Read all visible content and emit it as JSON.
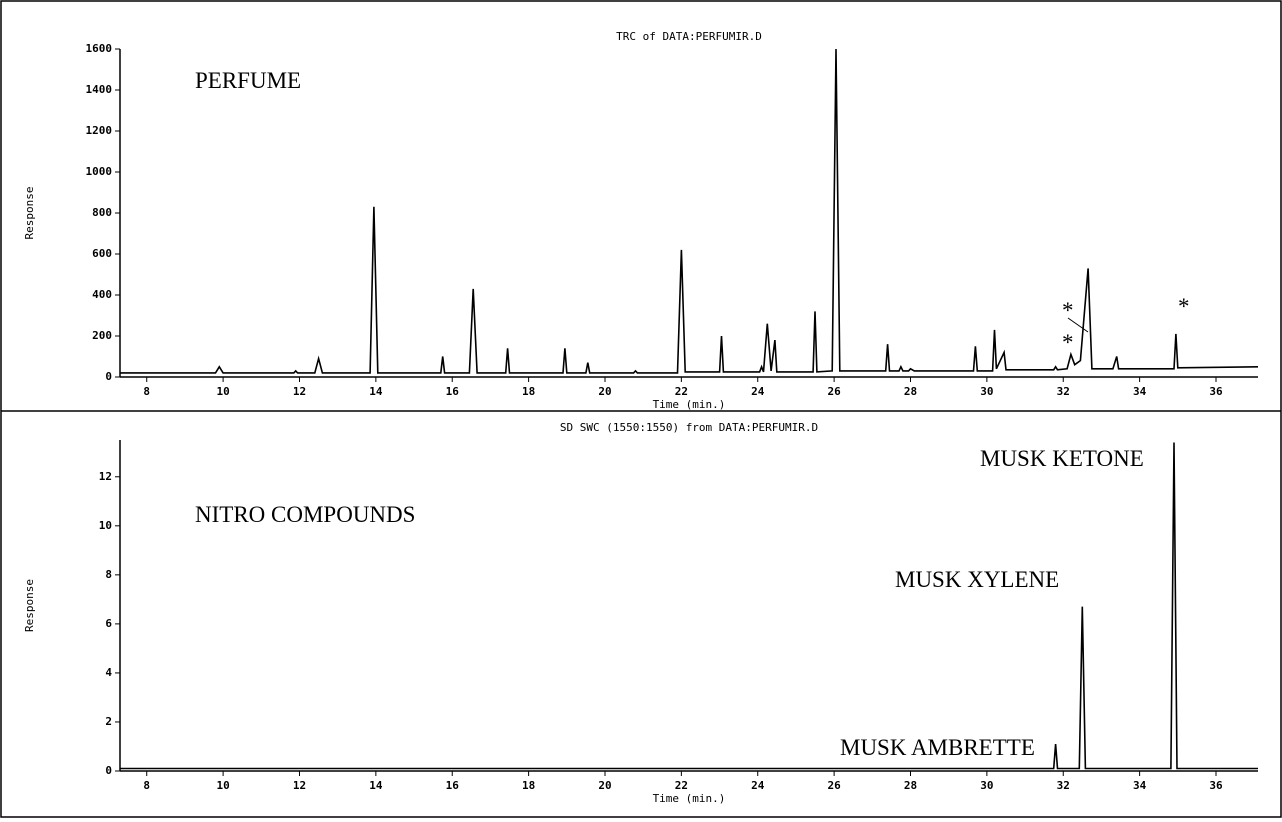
{
  "chart_data": [
    {
      "type": "line",
      "title": "TRC of DATA:PERFUMIR.D",
      "xlabel": "Time (min.)",
      "ylabel": "Response",
      "color": "#000000",
      "x": [
        7.3,
        9.8,
        9.9,
        10.0,
        11.85,
        11.9,
        11.95,
        12.4,
        12.5,
        12.6,
        13.85,
        13.95,
        14.05,
        15.7,
        15.75,
        15.8,
        16.45,
        16.55,
        16.65,
        17.4,
        17.45,
        17.5,
        18.9,
        18.95,
        19.0,
        19.5,
        19.55,
        19.6,
        20.75,
        20.8,
        20.85,
        21.9,
        22.0,
        22.1,
        23.0,
        23.05,
        23.1,
        24.05,
        24.1,
        24.15,
        24.25,
        24.35,
        24.45,
        24.5,
        25.45,
        25.5,
        25.55,
        25.95,
        26.05,
        26.15,
        27.35,
        27.4,
        27.45,
        27.7,
        27.75,
        27.8,
        27.95,
        28.0,
        28.1,
        29.65,
        29.7,
        29.75,
        30.15,
        30.2,
        30.25,
        30.45,
        30.5,
        31.75,
        31.8,
        31.85,
        32.1,
        32.2,
        32.3,
        32.45,
        32.65,
        32.75,
        33.2,
        33.25,
        33.3,
        33.4,
        33.45,
        34.9,
        34.95,
        35.0,
        37.1
      ],
      "values": [
        20,
        20,
        50,
        20,
        20,
        30,
        20,
        20,
        90,
        20,
        20,
        830,
        20,
        20,
        100,
        20,
        20,
        430,
        20,
        20,
        140,
        20,
        20,
        140,
        20,
        20,
        70,
        20,
        20,
        30,
        20,
        20,
        620,
        25,
        25,
        200,
        25,
        25,
        50,
        25,
        260,
        30,
        180,
        25,
        25,
        320,
        25,
        30,
        1600,
        30,
        30,
        160,
        30,
        30,
        50,
        30,
        30,
        40,
        30,
        30,
        150,
        30,
        30,
        230,
        40,
        120,
        35,
        35,
        50,
        35,
        40,
        110,
        60,
        80,
        530,
        40,
        40,
        40,
        40,
        100,
        40,
        40,
        210,
        45,
        50
      ],
      "xlim": [
        7.3,
        37.1
      ],
      "ylim": [
        0,
        1600
      ],
      "xticks": [
        8,
        10,
        12,
        14,
        16,
        18,
        20,
        22,
        24,
        26,
        28,
        30,
        32,
        34,
        36
      ],
      "yticks": [
        0,
        200,
        400,
        600,
        800,
        1000,
        1200,
        1400,
        1600
      ],
      "annotations": [
        "PERFUME",
        "*",
        "*",
        "*"
      ]
    },
    {
      "type": "line",
      "title": "SD SWC (1550:1550) from DATA:PERFUMIR.D",
      "xlabel": "Time (min.)",
      "ylabel": "Response",
      "color": "#000000",
      "x": [
        7.3,
        31.75,
        31.8,
        31.85,
        32.42,
        32.5,
        32.58,
        34.82,
        34.9,
        34.98,
        37.1
      ],
      "values": [
        0.1,
        0.1,
        1.1,
        0.1,
        0.1,
        6.7,
        0.1,
        0.1,
        13.4,
        0.1,
        0.1
      ],
      "xlim": [
        7.3,
        37.1
      ],
      "ylim": [
        0,
        13.5
      ],
      "xticks": [
        8,
        10,
        12,
        14,
        16,
        18,
        20,
        22,
        24,
        26,
        28,
        30,
        32,
        34,
        36
      ],
      "yticks": [
        0,
        2,
        4,
        6,
        8,
        10,
        12
      ],
      "annotations": [
        "NITRO COMPOUNDS",
        "MUSK KETONE",
        "MUSK XYLENE",
        "MUSK AMBRETTE"
      ]
    }
  ]
}
